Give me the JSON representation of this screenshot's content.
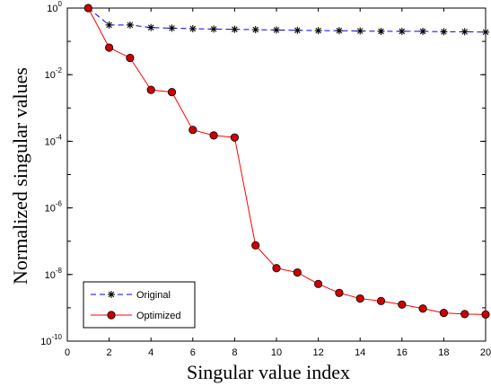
{
  "chart_data": {
    "type": "line",
    "xlabel": "Singular value index",
    "ylabel": "Normalized singular values",
    "xlim": [
      0,
      20
    ],
    "ylim_log10": [
      -10,
      0
    ],
    "y_scale": "log",
    "x_ticks": [
      0,
      2,
      4,
      6,
      8,
      10,
      12,
      14,
      16,
      18,
      20
    ],
    "y_tick_exponents": [
      0,
      -2,
      -4,
      -6,
      -8,
      -10
    ],
    "y_tick_base": "10",
    "grid": false,
    "legend_position": "bottom-left",
    "series": [
      {
        "name": "Original",
        "color": "#0000ff",
        "marker": "asterisk",
        "line_style": "dashed",
        "x": [
          1,
          2,
          3,
          4,
          5,
          6,
          7,
          8,
          9,
          10,
          11,
          12,
          13,
          14,
          15,
          16,
          17,
          18,
          19,
          20
        ],
        "y": [
          1.0,
          0.31,
          0.31,
          0.26,
          0.25,
          0.24,
          0.235,
          0.23,
          0.225,
          0.22,
          0.215,
          0.21,
          0.21,
          0.205,
          0.2,
          0.2,
          0.2,
          0.195,
          0.195,
          0.19
        ]
      },
      {
        "name": "Optimized",
        "color": "#ff0000",
        "marker": "circle",
        "marker_fill": "#cc0000",
        "line_style": "solid",
        "x": [
          1,
          2,
          3,
          4,
          5,
          6,
          7,
          8,
          9,
          10,
          11,
          12,
          13,
          14,
          15,
          16,
          17,
          18,
          19,
          20
        ],
        "y": [
          1.0,
          0.065,
          0.032,
          0.0035,
          0.003,
          0.00022,
          0.00015,
          0.00013,
          7.5e-08,
          1.55e-08,
          1.15e-08,
          5.2e-09,
          2.8e-09,
          1.9e-09,
          1.6e-09,
          1.25e-09,
          9.5e-10,
          7e-10,
          6.5e-10,
          6.3e-10
        ]
      }
    ]
  }
}
